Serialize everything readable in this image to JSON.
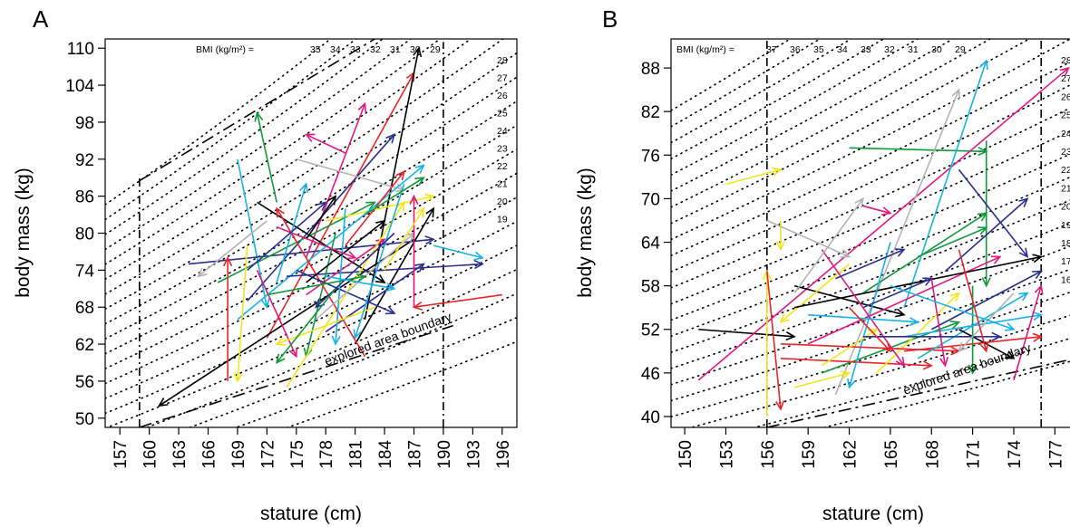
{
  "colors": {
    "black": "#000000",
    "red": "#e8262a",
    "green": "#109a3a",
    "cyan": "#17b3e8",
    "navy": "#2a2f8f",
    "magenta": "#e0197f",
    "yellow": "#f2e61b",
    "gray": "#b3b3b3"
  },
  "chart_data": [
    {
      "type": "scatter",
      "panel_label": "A",
      "xlabel": "stature (cm)",
      "ylabel": "body mass (kg)",
      "xlim": [
        155.5,
        197.5
      ],
      "ylim": [
        48.5,
        111.5
      ],
      "xticks": [
        157,
        160,
        163,
        166,
        169,
        172,
        175,
        178,
        181,
        184,
        187,
        190,
        193,
        196
      ],
      "yticks": [
        50,
        56,
        62,
        68,
        74,
        80,
        86,
        92,
        98,
        104,
        110
      ],
      "grid": false,
      "bmi_header": "BMI (kg/m²) =",
      "bmi_top_labels": [
        "35",
        "34",
        "33",
        "32",
        "31",
        "30",
        "29"
      ],
      "bmi_side_labels": [
        "28",
        "27",
        "26",
        "25",
        "24",
        "23",
        "22",
        "21",
        "20",
        "19"
      ],
      "bmi_isolines": [
        16,
        17,
        18,
        19,
        20,
        21,
        22,
        23,
        24,
        25,
        26,
        27,
        28,
        29,
        30,
        31,
        32,
        33,
        34,
        35
      ],
      "explored_area_boundary": {
        "label": "explored area boundary",
        "vertical_lines_x": [
          159,
          190
        ],
        "lower_line": [
          [
            159,
            48.5
          ],
          [
            191,
            65
          ]
        ],
        "upper_line": [
          [
            159,
            88.5
          ],
          [
            183,
            111.5
          ]
        ]
      },
      "arrows": [
        {
          "from": [
            173,
            85
          ],
          "to": [
            171,
            99.5
          ],
          "color": "green"
        },
        {
          "from": [
            172,
            63
          ],
          "to": [
            187,
            106
          ],
          "color": "red"
        },
        {
          "from": [
            182,
            66
          ],
          "to": [
            187.5,
            110
          ],
          "color": "black"
        },
        {
          "from": [
            187,
            79
          ],
          "to": [
            161,
            52
          ],
          "color": "black"
        },
        {
          "from": [
            169,
            92
          ],
          "to": [
            172,
            68
          ],
          "color": "cyan"
        },
        {
          "from": [
            164,
            75
          ],
          "to": [
            189,
            79
          ],
          "color": "navy"
        },
        {
          "from": [
            172,
            82
          ],
          "to": [
            165,
            73
          ],
          "color": "gray"
        },
        {
          "from": [
            196,
            70
          ],
          "to": [
            187,
            68
          ],
          "color": "red"
        },
        {
          "from": [
            168,
            56
          ],
          "to": [
            168,
            76
          ],
          "color": "red"
        },
        {
          "from": [
            176,
            76
          ],
          "to": [
            182,
            101
          ],
          "color": "magenta"
        },
        {
          "from": [
            170,
            69
          ],
          "to": [
            185,
            96
          ],
          "color": "navy"
        },
        {
          "from": [
            175,
            92
          ],
          "to": [
            186,
            87
          ],
          "color": "gray"
        },
        {
          "from": [
            180,
            93
          ],
          "to": [
            176,
            96
          ],
          "color": "magenta"
        },
        {
          "from": [
            167,
            72
          ],
          "to": [
            183,
            85
          ],
          "color": "green"
        },
        {
          "from": [
            171,
            85
          ],
          "to": [
            184,
            72
          ],
          "color": "black"
        },
        {
          "from": [
            178,
            82
          ],
          "to": [
            189,
            86
          ],
          "color": "yellow"
        },
        {
          "from": [
            181,
            62
          ],
          "to": [
            189,
            84
          ],
          "color": "black"
        },
        {
          "from": [
            169,
            66
          ],
          "to": [
            188,
            91
          ],
          "color": "cyan"
        },
        {
          "from": [
            174,
            73
          ],
          "to": [
            194,
            75
          ],
          "color": "navy"
        },
        {
          "from": [
            170,
            78
          ],
          "to": [
            169,
            56
          ],
          "color": "yellow"
        },
        {
          "from": [
            173,
            72
          ],
          "to": [
            176,
            88
          ],
          "color": "cyan"
        },
        {
          "from": [
            179,
            80
          ],
          "to": [
            176,
            60
          ],
          "color": "green"
        },
        {
          "from": [
            176,
            70
          ],
          "to": [
            184,
            79
          ],
          "color": "magenta"
        },
        {
          "from": [
            174,
            55
          ],
          "to": [
            186,
            85
          ],
          "color": "yellow"
        },
        {
          "from": [
            182,
            60
          ],
          "to": [
            173,
            84
          ],
          "color": "red"
        },
        {
          "from": [
            178,
            64
          ],
          "to": [
            188,
            75
          ],
          "color": "navy"
        },
        {
          "from": [
            171,
            74
          ],
          "to": [
            175,
            60
          ],
          "color": "magenta"
        },
        {
          "from": [
            175,
            74
          ],
          "to": [
            185,
            67
          ],
          "color": "navy"
        },
        {
          "from": [
            180,
            84
          ],
          "to": [
            179,
            62
          ],
          "color": "cyan"
        },
        {
          "from": [
            177,
            66
          ],
          "to": [
            187,
            80
          ],
          "color": "gray"
        },
        {
          "from": [
            172,
            70
          ],
          "to": [
            182,
            73
          ],
          "color": "green"
        },
        {
          "from": [
            183,
            68
          ],
          "to": [
            173,
            62
          ],
          "color": "yellow"
        },
        {
          "from": [
            186,
            88
          ],
          "to": [
            181,
            63
          ],
          "color": "cyan"
        },
        {
          "from": [
            180,
            78
          ],
          "to": [
            186,
            90
          ],
          "color": "red"
        },
        {
          "from": [
            185,
            80
          ],
          "to": [
            177,
            68
          ],
          "color": "navy"
        },
        {
          "from": [
            187,
            68
          ],
          "to": [
            187,
            86
          ],
          "color": "magenta"
        },
        {
          "from": [
            176,
            72
          ],
          "to": [
            184,
            82
          ],
          "color": "black"
        },
        {
          "from": [
            179,
            71
          ],
          "to": [
            173,
            59
          ],
          "color": "green"
        },
        {
          "from": [
            182,
            83
          ],
          "to": [
            188,
            89
          ],
          "color": "green"
        },
        {
          "from": [
            176,
            79
          ],
          "to": [
            179,
            86
          ],
          "color": "black"
        },
        {
          "from": [
            189,
            78
          ],
          "to": [
            194,
            76
          ],
          "color": "cyan"
        },
        {
          "from": [
            184,
            74
          ],
          "to": [
            188,
            84
          ],
          "color": "yellow"
        },
        {
          "from": [
            173,
            81
          ],
          "to": [
            181,
            76
          ],
          "color": "magenta"
        },
        {
          "from": [
            170,
            74
          ],
          "to": [
            178,
            85
          ],
          "color": "navy"
        },
        {
          "from": [
            178,
            73
          ],
          "to": [
            185,
            71
          ],
          "color": "cyan"
        }
      ]
    },
    {
      "type": "scatter",
      "panel_label": "B",
      "xlabel": "stature (cm)",
      "ylabel": "body mass (kg)",
      "xlim": [
        149,
        178.5
      ],
      "ylim": [
        38.5,
        92
      ],
      "xticks": [
        150,
        153,
        156,
        159,
        162,
        165,
        168,
        171,
        174,
        177
      ],
      "yticks": [
        40,
        46,
        52,
        58,
        64,
        70,
        76,
        82,
        88
      ],
      "grid": false,
      "bmi_header": "BMI (kg/m²) =",
      "bmi_top_labels": [
        "37",
        "36",
        "35",
        "34",
        "33",
        "32",
        "31",
        "30",
        "29"
      ],
      "bmi_side_labels": [
        "28",
        "27",
        "26",
        "25",
        "24",
        "23",
        "22",
        "21",
        "20",
        "19",
        "18",
        "17",
        "16"
      ],
      "bmi_isolines": [
        15,
        16,
        17,
        18,
        19,
        20,
        21,
        22,
        23,
        24,
        25,
        26,
        27,
        28,
        29,
        30,
        31,
        32,
        33,
        34,
        35,
        36,
        37
      ],
      "explored_area_boundary": {
        "label": "explored area boundary",
        "vertical_lines_x": [
          156,
          176
        ],
        "lower_line": [
          [
            156,
            38.5
          ],
          [
            178.5,
            48
          ]
        ]
      },
      "arrows": [
        {
          "from": [
            153,
            72
          ],
          "to": [
            157,
            74
          ],
          "color": "yellow"
        },
        {
          "from": [
            162,
            77
          ],
          "to": [
            172,
            76.5
          ],
          "color": "green"
        },
        {
          "from": [
            157,
            67
          ],
          "to": [
            157,
            63
          ],
          "color": "yellow"
        },
        {
          "from": [
            151,
            52
          ],
          "to": [
            158,
            51
          ],
          "color": "black"
        },
        {
          "from": [
            151,
            45
          ],
          "to": [
            178,
            88
          ],
          "color": "magenta"
        },
        {
          "from": [
            156,
            67
          ],
          "to": [
            162,
            62
          ],
          "color": "gray"
        },
        {
          "from": [
            163,
            69
          ],
          "to": [
            165,
            68
          ],
          "color": "magenta"
        },
        {
          "from": [
            156,
            40
          ],
          "to": [
            156,
            60
          ],
          "color": "yellow"
        },
        {
          "from": [
            156,
            60
          ],
          "to": [
            157,
            41
          ],
          "color": "red"
        },
        {
          "from": [
            161,
            43
          ],
          "to": [
            170,
            85
          ],
          "color": "gray"
        },
        {
          "from": [
            166,
            55
          ],
          "to": [
            172,
            89
          ],
          "color": "cyan"
        },
        {
          "from": [
            163,
            57
          ],
          "to": [
            172,
            68
          ],
          "color": "green"
        },
        {
          "from": [
            158,
            58
          ],
          "to": [
            166,
            54
          ],
          "color": "black"
        },
        {
          "from": [
            168,
            52
          ],
          "to": [
            176,
            60
          ],
          "color": "navy"
        },
        {
          "from": [
            172,
            78
          ],
          "to": [
            172,
            58
          ],
          "color": "green"
        },
        {
          "from": [
            170,
            74
          ],
          "to": [
            175,
            62
          ],
          "color": "navy"
        },
        {
          "from": [
            159,
            50
          ],
          "to": [
            173,
            62
          ],
          "color": "magenta"
        },
        {
          "from": [
            160,
            46
          ],
          "to": [
            170,
            53
          ],
          "color": "green"
        },
        {
          "from": [
            157,
            48
          ],
          "to": [
            168,
            47
          ],
          "color": "red"
        },
        {
          "from": [
            162,
            61
          ],
          "to": [
            157,
            53
          ],
          "color": "yellow"
        },
        {
          "from": [
            158,
            55
          ],
          "to": [
            176,
            62
          ],
          "color": "black"
        },
        {
          "from": [
            165,
            64
          ],
          "to": [
            162,
            44
          ],
          "color": "cyan"
        },
        {
          "from": [
            163,
            55
          ],
          "to": [
            168,
            59
          ],
          "color": "navy"
        },
        {
          "from": [
            164,
            46
          ],
          "to": [
            170,
            57
          ],
          "color": "yellow"
        },
        {
          "from": [
            160,
            63
          ],
          "to": [
            166,
            47
          ],
          "color": "magenta"
        },
        {
          "from": [
            166,
            51
          ],
          "to": [
            176,
            54
          ],
          "color": "cyan"
        },
        {
          "from": [
            169,
            60
          ],
          "to": [
            175,
            70
          ],
          "color": "navy"
        },
        {
          "from": [
            157,
            50
          ],
          "to": [
            170,
            49
          ],
          "color": "red"
        },
        {
          "from": [
            166,
            49
          ],
          "to": [
            176,
            51
          ],
          "color": "red"
        },
        {
          "from": [
            171,
            58
          ],
          "to": [
            171,
            46
          ],
          "color": "green"
        },
        {
          "from": [
            158,
            57
          ],
          "to": [
            163,
            70
          ],
          "color": "gray"
        },
        {
          "from": [
            167,
            48
          ],
          "to": [
            175,
            57
          ],
          "color": "cyan"
        },
        {
          "from": [
            168,
            59
          ],
          "to": [
            169,
            47
          ],
          "color": "magenta"
        },
        {
          "from": [
            170,
            52
          ],
          "to": [
            174,
            48
          ],
          "color": "black"
        },
        {
          "from": [
            174,
            45
          ],
          "to": [
            176,
            58
          ],
          "color": "magenta"
        },
        {
          "from": [
            161,
            59
          ],
          "to": [
            166,
            63
          ],
          "color": "navy"
        },
        {
          "from": [
            159,
            54
          ],
          "to": [
            167,
            53
          ],
          "color": "cyan"
        },
        {
          "from": [
            167,
            62
          ],
          "to": [
            172,
            66
          ],
          "color": "green"
        },
        {
          "from": [
            160,
            47
          ],
          "to": [
            164,
            52
          ],
          "color": "yellow"
        },
        {
          "from": [
            163,
            51
          ],
          "to": [
            173,
            51
          ],
          "color": "navy"
        },
        {
          "from": [
            158,
            44
          ],
          "to": [
            162,
            46
          ],
          "color": "yellow"
        },
        {
          "from": [
            174,
            57
          ],
          "to": [
            170,
            49
          ],
          "color": "gray"
        },
        {
          "from": [
            162,
            55
          ],
          "to": [
            165,
            49
          ],
          "color": "red"
        },
        {
          "from": [
            165,
            58
          ],
          "to": [
            174,
            52
          ],
          "color": "cyan"
        },
        {
          "from": [
            170,
            63
          ],
          "to": [
            172,
            49
          ],
          "color": "red"
        }
      ]
    }
  ]
}
